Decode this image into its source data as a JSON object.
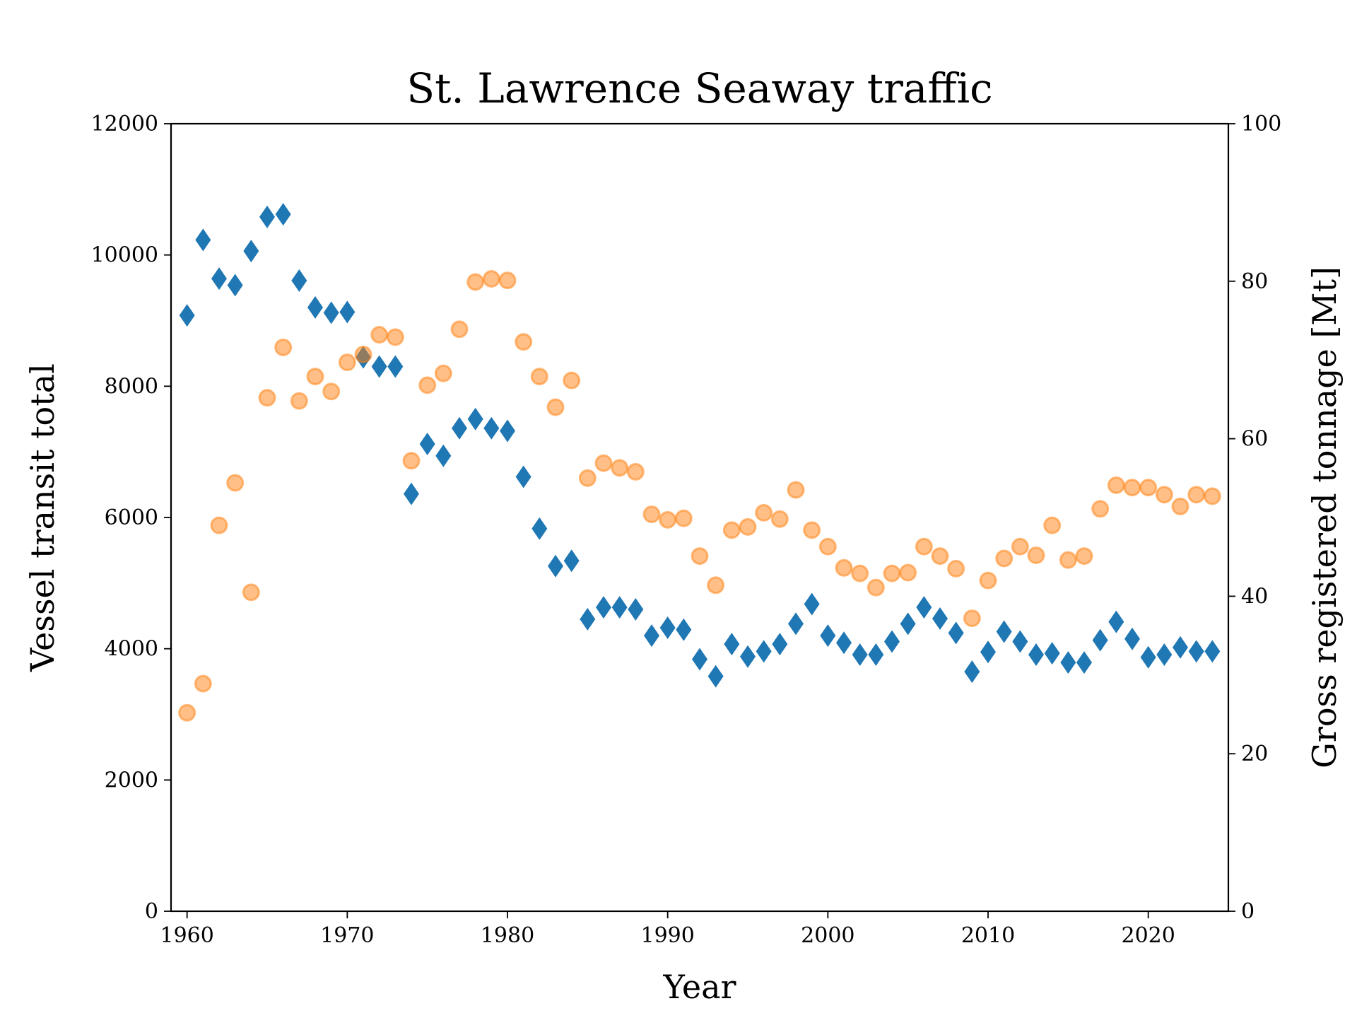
{
  "chart_data": {
    "type": "scatter",
    "title": "St. Lawrence Seaway traffic",
    "xlabel": "Year",
    "ylabel": "Vessel transit total",
    "y2label": "Gross registered tonnage [Mt]",
    "xlim": [
      1959,
      2025
    ],
    "ylim": [
      0,
      12000
    ],
    "y2lim": [
      0,
      100
    ],
    "xticks": [
      1960,
      1970,
      1980,
      1990,
      2000,
      2010,
      2020
    ],
    "yticks": [
      0,
      2000,
      4000,
      6000,
      8000,
      10000,
      12000
    ],
    "y2ticks": [
      0,
      20,
      40,
      60,
      80,
      100
    ],
    "grid": false,
    "x": [
      1960,
      1961,
      1962,
      1963,
      1964,
      1965,
      1966,
      1967,
      1968,
      1969,
      1970,
      1971,
      1972,
      1973,
      1974,
      1975,
      1976,
      1977,
      1978,
      1979,
      1980,
      1981,
      1982,
      1983,
      1984,
      1985,
      1986,
      1987,
      1988,
      1989,
      1990,
      1991,
      1992,
      1993,
      1994,
      1995,
      1996,
      1997,
      1998,
      1999,
      2000,
      2001,
      2002,
      2003,
      2004,
      2005,
      2006,
      2007,
      2008,
      2009,
      2010,
      2011,
      2012,
      2013,
      2014,
      2015,
      2016,
      2017,
      2018,
      2019,
      2020,
      2021,
      2022,
      2023,
      2024
    ],
    "series": [
      {
        "axis": "left",
        "marker": "diamond",
        "color": "#1f77b4",
        "values": [
          9080,
          10230,
          9640,
          9540,
          10060,
          10580,
          10620,
          9610,
          9200,
          9120,
          9130,
          8440,
          8300,
          8300,
          6360,
          7120,
          6940,
          7360,
          7500,
          7360,
          7320,
          6620,
          5830,
          5260,
          5340,
          4450,
          4630,
          4630,
          4600,
          4200,
          4320,
          4290,
          3840,
          3580,
          4070,
          3880,
          3960,
          4070,
          4380,
          4680,
          4200,
          4090,
          3910,
          3910,
          4110,
          4380,
          4630,
          4460,
          4240,
          3650,
          3950,
          4260,
          4110,
          3910,
          3930,
          3790,
          3790,
          4130,
          4410,
          4150,
          3870,
          3910,
          4020,
          3960,
          3960
        ]
      },
      {
        "axis": "right",
        "marker": "circle",
        "color": "#ff7f0e",
        "values": [
          25.2,
          28.9,
          49.0,
          54.4,
          40.5,
          65.2,
          71.6,
          64.8,
          67.9,
          66.0,
          69.7,
          70.7,
          73.2,
          72.9,
          57.2,
          66.8,
          68.3,
          73.9,
          79.9,
          80.3,
          80.1,
          72.3,
          67.9,
          64.0,
          67.4,
          55.0,
          56.9,
          56.3,
          55.8,
          50.4,
          49.7,
          49.9,
          45.1,
          41.4,
          48.4,
          48.8,
          50.6,
          49.8,
          53.5,
          48.4,
          46.3,
          43.6,
          42.9,
          41.1,
          42.9,
          43.0,
          46.3,
          45.1,
          43.5,
          37.2,
          42.0,
          44.8,
          46.3,
          45.2,
          49.0,
          44.6,
          45.1,
          51.1,
          54.1,
          53.8,
          53.8,
          52.9,
          51.4,
          52.9,
          52.7
        ]
      }
    ]
  }
}
